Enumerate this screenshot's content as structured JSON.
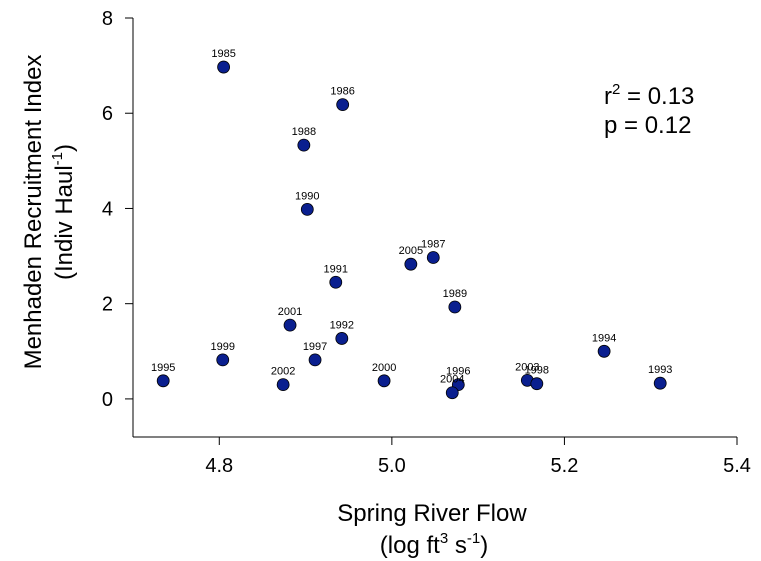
{
  "chart_data": {
    "type": "scatter",
    "xlabel_line1": "Spring River Flow",
    "xlabel_line2_prefix": "(log ft",
    "xlabel_line2_sup1": "3",
    "xlabel_line2_mid": " s",
    "xlabel_line2_sup2": "-1",
    "xlabel_line2_suffix": ")",
    "ylabel_line1": "Menhaden Recruitment Index",
    "ylabel_line2_prefix": "(Indiv Haul",
    "ylabel_line2_sup": "-1",
    "ylabel_line2_suffix": ")",
    "xlim": [
      4.7,
      5.4
    ],
    "ylim": [
      -0.8,
      8
    ],
    "xticks": [
      4.8,
      5.0,
      5.2,
      5.4
    ],
    "xtick_labels": [
      "4.8",
      "5.0",
      "5.2",
      "5.4"
    ],
    "yticks": [
      0,
      2,
      4,
      6,
      8
    ],
    "ytick_labels": [
      "0",
      "2",
      "4",
      "6",
      "8"
    ],
    "grid": false,
    "marker_color": "#0a1f8f",
    "annotation": {
      "r2_prefix": "r",
      "r2_sup": "2",
      "r2_suffix": " = 0.13",
      "p_text": "p = 0.12"
    },
    "points": [
      {
        "label": "1985",
        "x": 4.805,
        "y": 6.97
      },
      {
        "label": "1986",
        "x": 4.943,
        "y": 6.18
      },
      {
        "label": "1988",
        "x": 4.898,
        "y": 5.33
      },
      {
        "label": "1990",
        "x": 4.902,
        "y": 3.98
      },
      {
        "label": "2005",
        "x": 5.022,
        "y": 2.83
      },
      {
        "label": "1987",
        "x": 5.048,
        "y": 2.97
      },
      {
        "label": "1991",
        "x": 4.935,
        "y": 2.45
      },
      {
        "label": "1989",
        "x": 5.073,
        "y": 1.93
      },
      {
        "label": "2001",
        "x": 4.882,
        "y": 1.55
      },
      {
        "label": "1992",
        "x": 4.942,
        "y": 1.27
      },
      {
        "label": "1997",
        "x": 4.911,
        "y": 0.82
      },
      {
        "label": "1999",
        "x": 4.804,
        "y": 0.82
      },
      {
        "label": "1995",
        "x": 4.735,
        "y": 0.38
      },
      {
        "label": "2002",
        "x": 4.874,
        "y": 0.3
      },
      {
        "label": "2000",
        "x": 4.991,
        "y": 0.38
      },
      {
        "label": "1996",
        "x": 5.077,
        "y": 0.3
      },
      {
        "label": "2004",
        "x": 5.07,
        "y": 0.13
      },
      {
        "label": "2003",
        "x": 5.157,
        "y": 0.39
      },
      {
        "label": "1998",
        "x": 5.168,
        "y": 0.32
      },
      {
        "label": "1994",
        "x": 5.246,
        "y": 1.0
      },
      {
        "label": "1993",
        "x": 5.311,
        "y": 0.33
      }
    ]
  }
}
